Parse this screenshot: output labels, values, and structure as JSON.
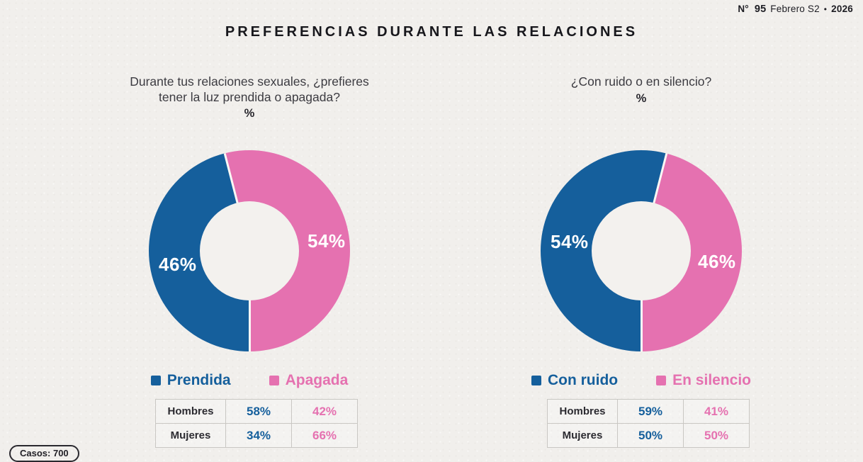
{
  "title": "PREFERENCIAS DURANTE LAS RELACIONES",
  "issue": {
    "label": "N°",
    "number": "95",
    "period": "Febrero S2",
    "bullet": "•",
    "year": "2026"
  },
  "cases_label": "Casos: 700",
  "colors": {
    "blue": "#155f9c",
    "pink": "#e571b0",
    "slice_label_text": "#ffffff",
    "background": "#f1efec"
  },
  "charts": [
    {
      "question_line1": "Durante tus relaciones sexuales, ¿prefieres",
      "question_line2": "tener la luz prendida o apagada?",
      "percent_symbol": "%",
      "slice_labels": {
        "a": "46%",
        "b": "54%"
      },
      "legend": [
        {
          "label": "Prendida",
          "color": "#155f9c"
        },
        {
          "label": "Apagada",
          "color": "#e571b0"
        }
      ],
      "table": {
        "rows": [
          {
            "name": "Hombres",
            "v1": "58%",
            "v2": "42%"
          },
          {
            "name": "Mujeres",
            "v1": "34%",
            "v2": "66%"
          }
        ]
      },
      "donut": {
        "start": 345.6,
        "segments": [
          {
            "label": "Apagada",
            "color": "#e571b0",
            "value": 54
          },
          {
            "label": "Prendida",
            "color": "#155f9c",
            "value": 46
          }
        ]
      }
    },
    {
      "question_line1": "¿Con ruido o en silencio?",
      "question_line2": "",
      "percent_symbol": "%",
      "slice_labels": {
        "a": "54%",
        "b": "46%"
      },
      "legend": [
        {
          "label": "Con ruido",
          "color": "#155f9c"
        },
        {
          "label": "En silencio",
          "color": "#e571b0"
        }
      ],
      "table": {
        "rows": [
          {
            "name": "Hombres",
            "v1": "59%",
            "v2": "41%"
          },
          {
            "name": "Mujeres",
            "v1": "50%",
            "v2": "50%"
          }
        ]
      },
      "donut": {
        "start": 14.4,
        "segments": [
          {
            "label": "En silencio",
            "color": "#e571b0",
            "value": 46
          },
          {
            "label": "Con ruido",
            "color": "#155f9c",
            "value": 54
          }
        ]
      }
    }
  ],
  "chart_data": [
    {
      "type": "pie",
      "subtype": "donut",
      "title": "Durante tus relaciones sexuales, ¿prefieres tener la luz prendida o apagada?",
      "unit": "%",
      "categories": [
        "Prendida",
        "Apagada"
      ],
      "values": [
        46,
        54
      ],
      "colors": [
        "#155f9c",
        "#e571b0"
      ],
      "start_angle_deg": 345.6,
      "legend_position": "bottom",
      "breakdown": {
        "row_labels": [
          "Hombres",
          "Mujeres"
        ],
        "columns": [
          "Prendida",
          "Apagada"
        ],
        "values": [
          [
            58,
            42
          ],
          [
            34,
            66
          ]
        ]
      }
    },
    {
      "type": "pie",
      "subtype": "donut",
      "title": "¿Con ruido o en silencio?",
      "unit": "%",
      "categories": [
        "Con ruido",
        "En silencio"
      ],
      "values": [
        54,
        46
      ],
      "colors": [
        "#155f9c",
        "#e571b0"
      ],
      "start_angle_deg": 14.4,
      "legend_position": "bottom",
      "breakdown": {
        "row_labels": [
          "Hombres",
          "Mujeres"
        ],
        "columns": [
          "Con ruido",
          "En silencio"
        ],
        "values": [
          [
            59,
            41
          ],
          [
            50,
            50
          ]
        ]
      }
    }
  ]
}
